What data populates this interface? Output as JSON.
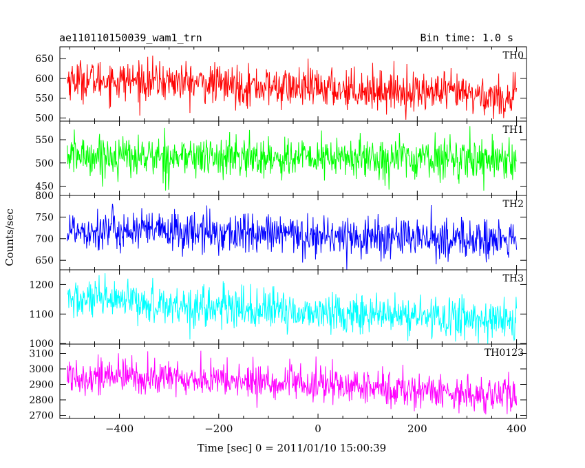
{
  "header": {
    "title": "ae110110150039_wam1_trn",
    "bin_time": "Bin time: 1.0 s"
  },
  "chart_data": {
    "type": "line",
    "title": "ae110110150039_wam1_trn",
    "subtitle": "Bin time: 1.0 s",
    "xlabel": "Time [sec] 0 = 2011/01/10 15:00:39",
    "ylabel": "Counts/sec",
    "xlim": [
      -520,
      420
    ],
    "x_ticks": [
      -400,
      -200,
      0,
      200,
      400
    ],
    "x_data_range": [
      -505,
      400
    ],
    "grid": false,
    "legend": "none; each panel labelled at top-right",
    "panels": [
      {
        "name": "TH0",
        "color": "#ff0000",
        "ylim": [
          492,
          680
        ],
        "y_ticks": [
          500,
          550,
          600,
          650
        ],
        "trend": [
          [
            -505,
            598
          ],
          [
            -300,
            592
          ],
          [
            -100,
            578
          ],
          [
            100,
            572
          ],
          [
            300,
            560
          ],
          [
            400,
            548
          ]
        ],
        "noise_sd": 25
      },
      {
        "name": "TH1",
        "color": "#00ff00",
        "ylim": [
          430,
          590
        ],
        "y_ticks": [
          450,
          500,
          550
        ],
        "trend": [
          [
            -505,
            516
          ],
          [
            -200,
            512
          ],
          [
            100,
            510
          ],
          [
            400,
            510
          ]
        ],
        "noise_sd": 22
      },
      {
        "name": "TH2",
        "color": "#0000ff",
        "ylim": [
          628,
          800
        ],
        "y_ticks": [
          650,
          700,
          750,
          800
        ],
        "trend": [
          [
            -505,
            722
          ],
          [
            -300,
            716
          ],
          [
            -100,
            710
          ],
          [
            100,
            704
          ],
          [
            300,
            698
          ],
          [
            400,
            695
          ]
        ],
        "noise_sd": 24
      },
      {
        "name": "TH3",
        "color": "#00ffff",
        "ylim": [
          998,
          1250
        ],
        "y_ticks": [
          1000,
          1100,
          1200
        ],
        "trend": [
          [
            -505,
            1150
          ],
          [
            -300,
            1132
          ],
          [
            -100,
            1112
          ],
          [
            100,
            1098
          ],
          [
            300,
            1085
          ],
          [
            400,
            1078
          ]
        ],
        "noise_sd": 34
      },
      {
        "name": "TH0123",
        "color": "#ff00ff",
        "ylim": [
          2680,
          3160
        ],
        "y_ticks": [
          2700,
          2800,
          2900,
          3000,
          3100
        ],
        "trend": [
          [
            -505,
            2960
          ],
          [
            -300,
            2940
          ],
          [
            -100,
            2912
          ],
          [
            100,
            2880
          ],
          [
            300,
            2842
          ],
          [
            400,
            2822
          ]
        ],
        "noise_sd": 58
      }
    ]
  }
}
